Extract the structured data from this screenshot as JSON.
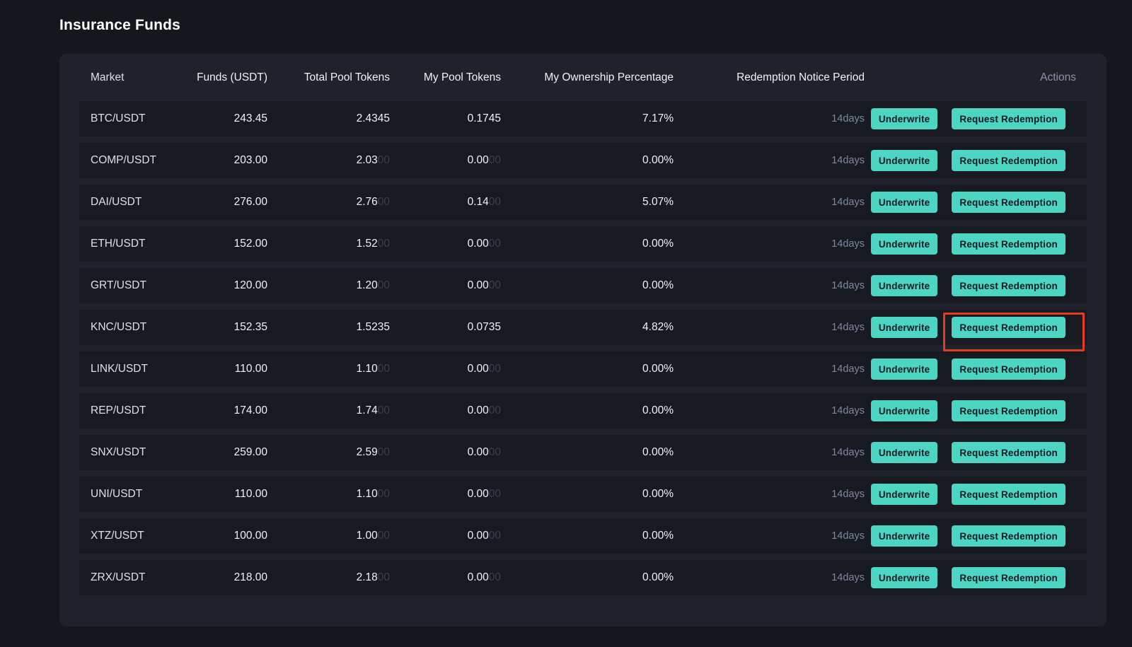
{
  "page": {
    "title": "Insurance Funds"
  },
  "colors": {
    "background": "#15171c",
    "panel": "#1f222b",
    "row": "#171a21",
    "accent_teal": "#4bd5c2",
    "button_text": "#141a21",
    "highlight_red": "#e43c1e",
    "header_text": "#8b93a8",
    "dim_digits": "#3a404f"
  },
  "table": {
    "columns": [
      "Market",
      "Funds (USDT)",
      "Total Pool Tokens",
      "My Pool Tokens",
      "My Ownership Percentage",
      "Redemption Notice Period",
      "Actions"
    ],
    "actions": {
      "underwrite_label": "Underwrite",
      "redeem_label": "Request Redemption"
    },
    "rows": [
      {
        "market": "BTC/USDT",
        "funds": "243.45",
        "total_pool_tokens": "2.4345",
        "total_pool_tokens_dim": "",
        "my_pool_tokens": "0.1745",
        "my_pool_tokens_dim": "",
        "ownership": "7.17%",
        "notice_period": "14days",
        "highlighted": false
      },
      {
        "market": "COMP/USDT",
        "funds": "203.00",
        "total_pool_tokens": "2.03",
        "total_pool_tokens_dim": "00",
        "my_pool_tokens": "0.00",
        "my_pool_tokens_dim": "00",
        "ownership": "0.00%",
        "notice_period": "14days",
        "highlighted": false
      },
      {
        "market": "DAI/USDT",
        "funds": "276.00",
        "total_pool_tokens": "2.76",
        "total_pool_tokens_dim": "00",
        "my_pool_tokens": "0.14",
        "my_pool_tokens_dim": "00",
        "ownership": "5.07%",
        "notice_period": "14days",
        "highlighted": false
      },
      {
        "market": "ETH/USDT",
        "funds": "152.00",
        "total_pool_tokens": "1.52",
        "total_pool_tokens_dim": "00",
        "my_pool_tokens": "0.00",
        "my_pool_tokens_dim": "00",
        "ownership": "0.00%",
        "notice_period": "14days",
        "highlighted": false
      },
      {
        "market": "GRT/USDT",
        "funds": "120.00",
        "total_pool_tokens": "1.20",
        "total_pool_tokens_dim": "00",
        "my_pool_tokens": "0.00",
        "my_pool_tokens_dim": "00",
        "ownership": "0.00%",
        "notice_period": "14days",
        "highlighted": false
      },
      {
        "market": "KNC/USDT",
        "funds": "152.35",
        "total_pool_tokens": "1.5235",
        "total_pool_tokens_dim": "",
        "my_pool_tokens": "0.0735",
        "my_pool_tokens_dim": "",
        "ownership": "4.82%",
        "notice_period": "14days",
        "highlighted": true
      },
      {
        "market": "LINK/USDT",
        "funds": "110.00",
        "total_pool_tokens": "1.10",
        "total_pool_tokens_dim": "00",
        "my_pool_tokens": "0.00",
        "my_pool_tokens_dim": "00",
        "ownership": "0.00%",
        "notice_period": "14days",
        "highlighted": false
      },
      {
        "market": "REP/USDT",
        "funds": "174.00",
        "total_pool_tokens": "1.74",
        "total_pool_tokens_dim": "00",
        "my_pool_tokens": "0.00",
        "my_pool_tokens_dim": "00",
        "ownership": "0.00%",
        "notice_period": "14days",
        "highlighted": false
      },
      {
        "market": "SNX/USDT",
        "funds": "259.00",
        "total_pool_tokens": "2.59",
        "total_pool_tokens_dim": "00",
        "my_pool_tokens": "0.00",
        "my_pool_tokens_dim": "00",
        "ownership": "0.00%",
        "notice_period": "14days",
        "highlighted": false
      },
      {
        "market": "UNI/USDT",
        "funds": "110.00",
        "total_pool_tokens": "1.10",
        "total_pool_tokens_dim": "00",
        "my_pool_tokens": "0.00",
        "my_pool_tokens_dim": "00",
        "ownership": "0.00%",
        "notice_period": "14days",
        "highlighted": false
      },
      {
        "market": "XTZ/USDT",
        "funds": "100.00",
        "total_pool_tokens": "1.00",
        "total_pool_tokens_dim": "00",
        "my_pool_tokens": "0.00",
        "my_pool_tokens_dim": "00",
        "ownership": "0.00%",
        "notice_period": "14days",
        "highlighted": false
      },
      {
        "market": "ZRX/USDT",
        "funds": "218.00",
        "total_pool_tokens": "2.18",
        "total_pool_tokens_dim": "00",
        "my_pool_tokens": "0.00",
        "my_pool_tokens_dim": "00",
        "ownership": "0.00%",
        "notice_period": "14days",
        "highlighted": false
      }
    ]
  }
}
